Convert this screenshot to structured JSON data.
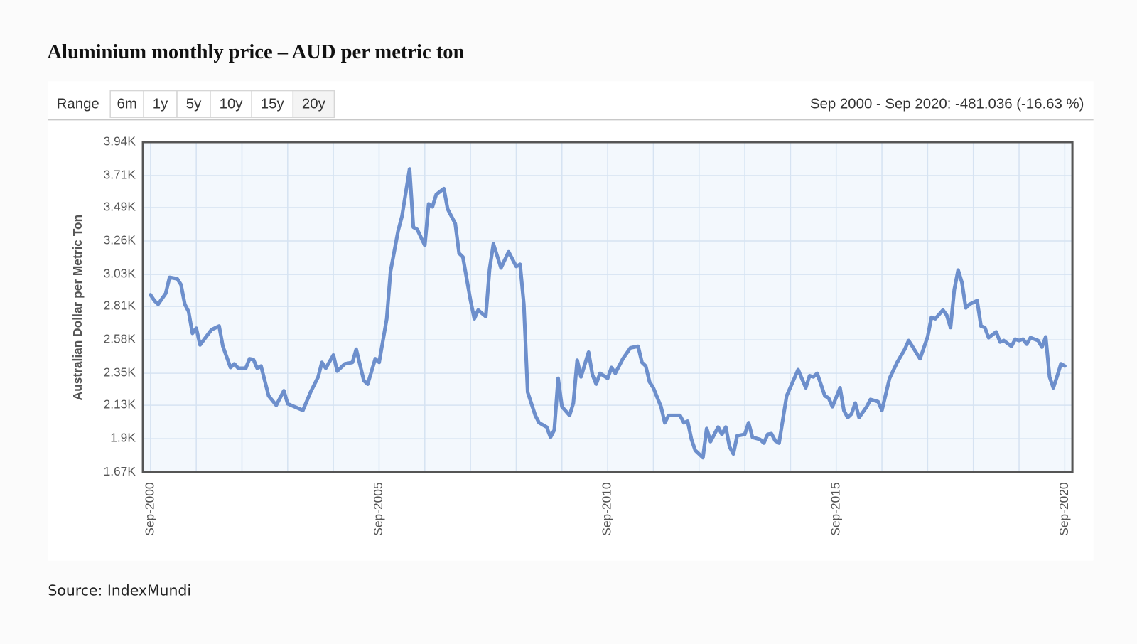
{
  "chart_data": {
    "type": "line",
    "title": "Aluminium monthly price – AUD per metric ton",
    "range_selector": {
      "label": "Range",
      "buttons": [
        "6m",
        "1y",
        "5y",
        "10y",
        "15y",
        "20y"
      ],
      "selected": 5
    },
    "summary": "Sep 2000 - Sep 2020: -481.036 (-16.63 %)",
    "y_label": "Australian Dollar per Metric Ton",
    "source": "Source: IndexMundi",
    "color": "#6d8fcc",
    "x": [
      "2000-09",
      "2000-10",
      "2000-11",
      "2001-01",
      "2001-02",
      "2001-04",
      "2001-05",
      "2001-06",
      "2001-07",
      "2001-08",
      "2001-09",
      "2001-10",
      "2001-12",
      "2002-01",
      "2002-03",
      "2002-04",
      "2002-06",
      "2002-07",
      "2002-08",
      "2002-10",
      "2002-11",
      "2002-12",
      "2003-01",
      "2003-02",
      "2003-04",
      "2003-06",
      "2003-08",
      "2003-09",
      "2004-01",
      "2004-03",
      "2004-05",
      "2004-06",
      "2004-07",
      "2004-09",
      "2004-10",
      "2004-12",
      "2005-02",
      "2005-03",
      "2005-05",
      "2005-06",
      "2005-08",
      "2005-09",
      "2005-11",
      "2005-12",
      "2006-02",
      "2006-03",
      "2006-05",
      "2006-06",
      "2006-07",
      "2006-09",
      "2006-10",
      "2006-11",
      "2006-12",
      "2007-02",
      "2007-03",
      "2007-05",
      "2007-06",
      "2007-07",
      "2007-09",
      "2007-10",
      "2007-11",
      "2008-01",
      "2008-02",
      "2008-03",
      "2008-05",
      "2008-07",
      "2008-09",
      "2008-10",
      "2008-11",
      "2008-12",
      "2009-02",
      "2009-03",
      "2009-05",
      "2009-06",
      "2009-07",
      "2009-08",
      "2009-09",
      "2009-11",
      "2009-12",
      "2010-01",
      "2010-02",
      "2010-04",
      "2010-05",
      "2010-06",
      "2010-07",
      "2010-09",
      "2010-10",
      "2010-11",
      "2011-01",
      "2011-03",
      "2011-05",
      "2011-06",
      "2011-07",
      "2011-08",
      "2011-09",
      "2011-11",
      "2011-12",
      "2012-01",
      "2012-04",
      "2012-05",
      "2012-06",
      "2012-07",
      "2012-08",
      "2012-10",
      "2012-11",
      "2012-12",
      "2013-02",
      "2013-03",
      "2013-04",
      "2013-05",
      "2013-06",
      "2013-07",
      "2013-09",
      "2013-10",
      "2013-11",
      "2014-01",
      "2014-02",
      "2014-03",
      "2014-04",
      "2014-05",
      "2014-06",
      "2014-08",
      "2014-11",
      "2015-01",
      "2015-02",
      "2015-03",
      "2015-04",
      "2015-06",
      "2015-07",
      "2015-08",
      "2015-10",
      "2015-11",
      "2015-12",
      "2016-01",
      "2016-02",
      "2016-03",
      "2016-05",
      "2016-06",
      "2016-08",
      "2016-09",
      "2016-11",
      "2017-01",
      "2017-03",
      "2017-04",
      "2017-05",
      "2017-07",
      "2017-09",
      "2017-10",
      "2017-11",
      "2018-01",
      "2018-02",
      "2018-03",
      "2018-04",
      "2018-05",
      "2018-06",
      "2018-07",
      "2018-08",
      "2018-10",
      "2018-11",
      "2018-12",
      "2019-01",
      "2019-03",
      "2019-04",
      "2019-05",
      "2019-07",
      "2019-08",
      "2019-09",
      "2019-10",
      "2019-11",
      "2019-12",
      "2020-02",
      "2020-03",
      "2020-04",
      "2020-05",
      "2020-06",
      "2020-07",
      "2020-08",
      "2020-09"
    ],
    "values": [
      2890,
      2850,
      2825,
      2900,
      3010,
      3000,
      2960,
      2825,
      2775,
      2625,
      2660,
      2545,
      2615,
      2650,
      2675,
      2535,
      2390,
      2415,
      2385,
      2385,
      2450,
      2445,
      2385,
      2400,
      2195,
      2130,
      2230,
      2140,
      2095,
      2220,
      2325,
      2425,
      2385,
      2475,
      2365,
      2415,
      2425,
      2515,
      2300,
      2275,
      2450,
      2425,
      2725,
      3050,
      3330,
      3430,
      3755,
      3355,
      3340,
      3230,
      3515,
      3495,
      3580,
      3620,
      3480,
      3380,
      3175,
      3150,
      2850,
      2725,
      2785,
      2740,
      3065,
      3240,
      3075,
      3185,
      3085,
      3100,
      2825,
      2220,
      2060,
      2010,
      1980,
      1910,
      1960,
      2315,
      2120,
      2060,
      2145,
      2440,
      2325,
      2495,
      2340,
      2275,
      2350,
      2315,
      2390,
      2350,
      2450,
      2525,
      2535,
      2425,
      2400,
      2290,
      2250,
      2120,
      2010,
      2060,
      2060,
      2010,
      2020,
      1895,
      1820,
      1770,
      1970,
      1880,
      1980,
      1930,
      1980,
      1845,
      1795,
      1920,
      1930,
      2010,
      1910,
      1895,
      1870,
      1930,
      1935,
      1885,
      1870,
      2195,
      2375,
      2250,
      2333,
      2325,
      2350,
      2195,
      2180,
      2120,
      2250,
      2095,
      2045,
      2070,
      2145,
      2045,
      2120,
      2170,
      2155,
      2095,
      2315,
      2425,
      2515,
      2575,
      2535,
      2450,
      2600,
      2735,
      2725,
      2785,
      2750,
      2665,
      2925,
      3060,
      2975,
      2800,
      2825,
      2850,
      2675,
      2665,
      2595,
      2635,
      2565,
      2575,
      2535,
      2585,
      2575,
      2585,
      2550,
      2595,
      2575,
      2530,
      2600,
      2325,
      2250,
      2330,
      2415,
      2400
    ],
    "xlim": [
      "2000-07",
      "2020-11"
    ],
    "xticks": [
      {
        "value": "2000-09",
        "label": "Sep-2000"
      },
      {
        "value": "2005-09",
        "label": "Sep-2005"
      },
      {
        "value": "2010-09",
        "label": "Sep-2010"
      },
      {
        "value": "2015-09",
        "label": "Sep-2015"
      },
      {
        "value": "2020-09",
        "label": "Sep-2020"
      }
    ],
    "xminor": [
      "2001-09",
      "2002-09",
      "2003-09",
      "2004-09",
      "2006-09",
      "2007-09",
      "2008-09",
      "2009-09",
      "2011-09",
      "2012-09",
      "2013-09",
      "2014-09",
      "2016-09",
      "2017-09",
      "2018-09",
      "2019-09"
    ],
    "ylim": [
      1670,
      3940
    ],
    "yticks": [
      {
        "value": 1670,
        "label": "1.67K"
      },
      {
        "value": 1900,
        "label": "1.9K"
      },
      {
        "value": 2130,
        "label": "2.13K"
      },
      {
        "value": 2350,
        "label": "2.35K"
      },
      {
        "value": 2580,
        "label": "2.58K"
      },
      {
        "value": 2810,
        "label": "2.81K"
      },
      {
        "value": 3030,
        "label": "3.03K"
      },
      {
        "value": 3260,
        "label": "3.26K"
      },
      {
        "value": 3490,
        "label": "3.49K"
      },
      {
        "value": 3710,
        "label": "3.71K"
      },
      {
        "value": 3940,
        "label": "3.94K"
      }
    ],
    "grid": true
  }
}
